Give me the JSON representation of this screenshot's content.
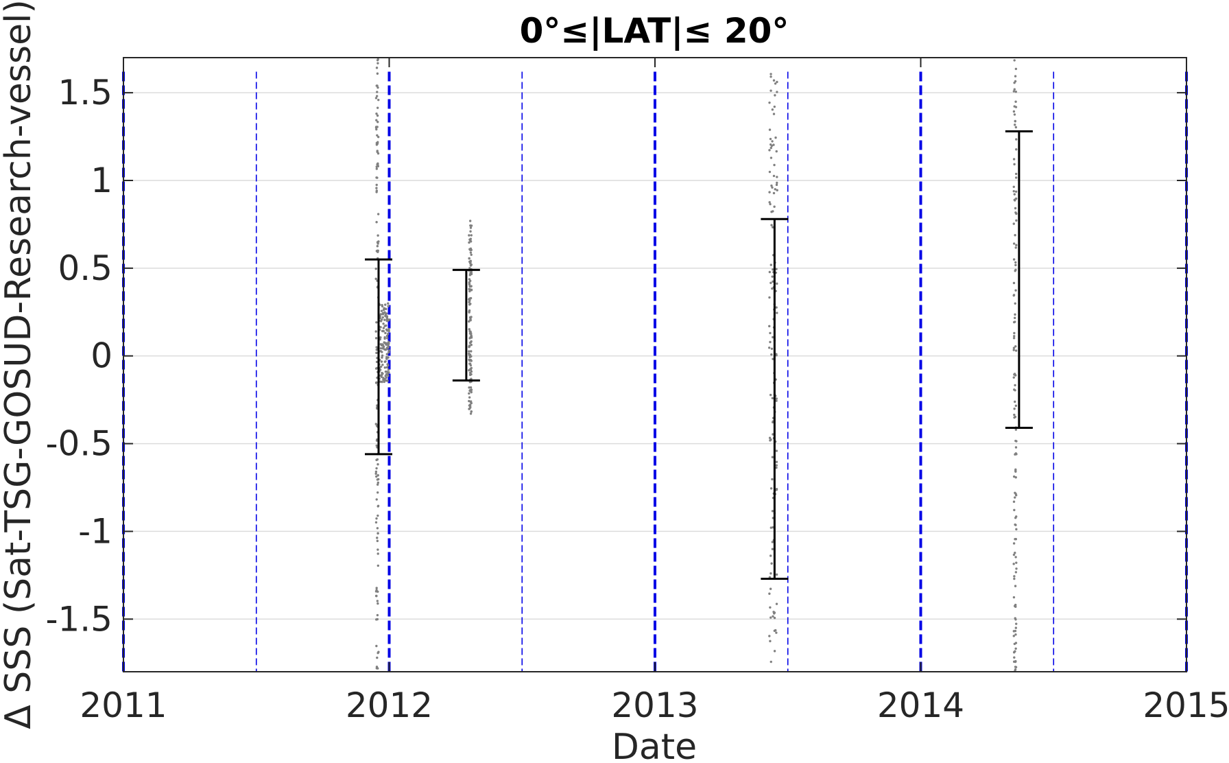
{
  "chart_data": {
    "type": "scatter",
    "title": "0°≤|LAT|≤ 20°",
    "xlabel": "Date",
    "ylabel": "Δ SSS (Sat-TSG-GOSUD-Research-vessel)",
    "xlim": [
      2011,
      2015
    ],
    "ylim": [
      -1.8,
      1.7
    ],
    "x_ticks": [
      "2011",
      "2012",
      "2013",
      "2014",
      "2015"
    ],
    "y_ticks": [
      {
        "value": 1.5,
        "label": "1.5"
      },
      {
        "value": 1,
        "label": "1"
      },
      {
        "value": 0.5,
        "label": "0.5"
      },
      {
        "value": 0,
        "label": "0"
      },
      {
        "value": -0.5,
        "label": "-0.5"
      },
      {
        "value": -1,
        "label": "-1"
      },
      {
        "value": -1.5,
        "label": "-1.5"
      }
    ],
    "grid": "horizontal",
    "reference_lines": {
      "color": "#0000e6",
      "year_boundaries": [
        2011,
        2012,
        2013,
        2014,
        2015
      ],
      "mid_year": [
        2011.5,
        2012.5,
        2013.5,
        2014.5
      ]
    },
    "scatter_color": "#808080",
    "errorbar_color": "#000000",
    "scatter_clusters": [
      {
        "x": [
          2011.95,
          2011.96
        ],
        "y_range": [
          -1.8,
          1.7
        ]
      },
      {
        "x": [
          2011.96,
          2012.0
        ],
        "y_range": [
          -0.15,
          0.3
        ]
      },
      {
        "x": [
          2012.3,
          2012.31
        ],
        "y_range": [
          -0.33,
          0.78
        ]
      },
      {
        "x": [
          2013.43,
          2013.46
        ],
        "y_range": [
          -1.75,
          1.7
        ]
      },
      {
        "x": [
          2014.35,
          2014.36
        ],
        "y_range": [
          -1.8,
          1.7
        ]
      }
    ],
    "error_bars": [
      {
        "x": 2011.96,
        "mean": 0.0,
        "low": -0.56,
        "high": 0.55
      },
      {
        "x": 2012.29,
        "mean": 0.18,
        "low": -0.14,
        "high": 0.49
      },
      {
        "x": 2013.45,
        "mean": -0.25,
        "low": -1.27,
        "high": 0.78
      },
      {
        "x": 2014.37,
        "mean": 0.44,
        "low": -0.41,
        "high": 1.28
      }
    ]
  }
}
